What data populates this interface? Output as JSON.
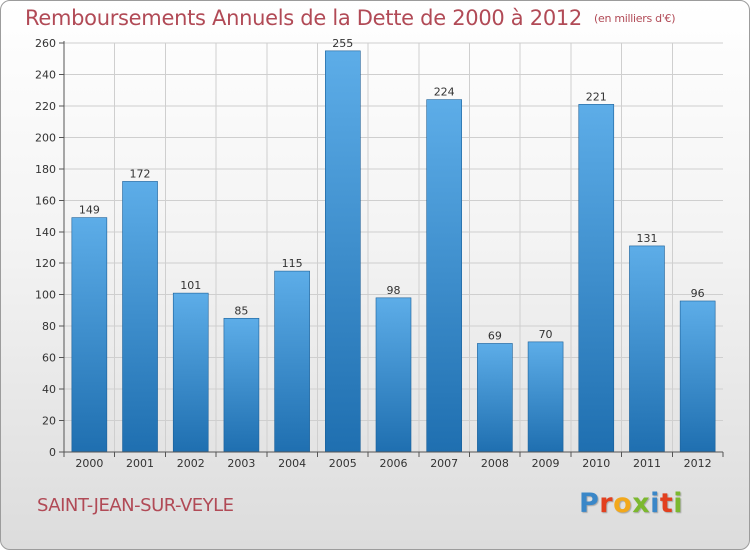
{
  "header": {
    "title": "Remboursements Annuels de la Dette de 2000 à 2012",
    "subtitle": "(en milliers d'€)"
  },
  "footer": {
    "commune": "SAINT-JEAN-SUR-VEYLE",
    "brand": "Proxiti"
  },
  "colors": {
    "bar_top": "#5dade8",
    "bar_bottom": "#1f6fb0",
    "title": "#b14a56",
    "grid": "#cfcfcf"
  },
  "chart_data": {
    "type": "bar",
    "title": "Remboursements Annuels de la Dette de 2000 à 2012",
    "subtitle": "(en milliers d'€)",
    "xlabel": "",
    "ylabel": "",
    "categories": [
      "2000",
      "2001",
      "2002",
      "2003",
      "2004",
      "2005",
      "2006",
      "2007",
      "2008",
      "2009",
      "2010",
      "2011",
      "2012"
    ],
    "values": [
      149,
      172,
      101,
      85,
      115,
      255,
      98,
      224,
      69,
      70,
      221,
      131,
      96
    ],
    "ylim": [
      0,
      260
    ],
    "yticks": [
      0,
      20,
      40,
      60,
      80,
      100,
      120,
      140,
      160,
      180,
      200,
      220,
      240,
      260
    ],
    "grid": true,
    "data_labels": true
  }
}
